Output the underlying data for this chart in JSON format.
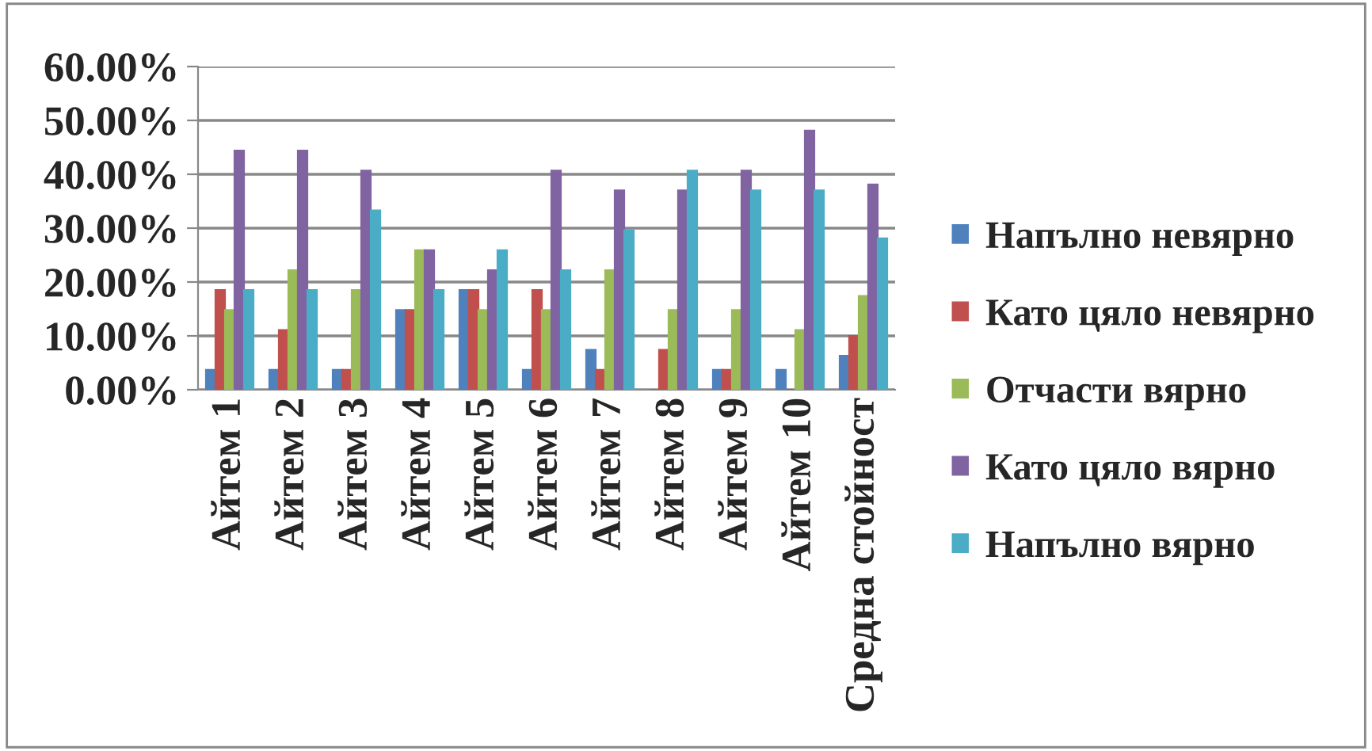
{
  "chart_data": {
    "type": "bar",
    "categories": [
      "Айтем 1",
      "Айтем 2",
      "Айтем 3",
      "Айтем 4",
      "Айтем 5",
      "Айтем 6",
      "Айтем 7",
      "Айтем 8",
      "Айтем 9",
      "Айтем 10",
      "Средна стойност"
    ],
    "series": [
      {
        "name": "Напълно невярно",
        "color": "#4f81bd",
        "values": [
          3.7,
          3.7,
          3.7,
          14.8,
          18.5,
          3.7,
          7.4,
          0,
          3.7,
          3.7,
          6.3
        ]
      },
      {
        "name": "Като цяло невярно",
        "color": "#c0504d",
        "values": [
          18.5,
          11.1,
          3.7,
          14.8,
          18.5,
          18.5,
          3.7,
          7.4,
          3.7,
          0,
          10.0
        ]
      },
      {
        "name": "Отчасти вярно",
        "color": "#9bbb59",
        "values": [
          14.8,
          22.2,
          18.5,
          25.9,
          14.8,
          14.8,
          22.2,
          14.8,
          14.8,
          11.1,
          17.4
        ]
      },
      {
        "name": "Като цяло вярно",
        "color": "#8064a2",
        "values": [
          44.4,
          44.4,
          40.7,
          25.9,
          22.2,
          40.7,
          37.0,
          37.0,
          40.7,
          48.1,
          38.1
        ]
      },
      {
        "name": "Напълно вярно",
        "color": "#4bacc6",
        "values": [
          18.5,
          18.5,
          33.3,
          18.5,
          25.9,
          22.2,
          29.6,
          40.7,
          37.0,
          37.0,
          28.1
        ]
      }
    ],
    "ylim": [
      0,
      60
    ],
    "yticks": [
      {
        "value": 0,
        "label": "0.00%"
      },
      {
        "value": 10,
        "label": "10.00%"
      },
      {
        "value": 20,
        "label": "20.00%"
      },
      {
        "value": 30,
        "label": "30.00%"
      },
      {
        "value": 40,
        "label": "40.00%"
      },
      {
        "value": 50,
        "label": "50.00%"
      },
      {
        "value": 60,
        "label": "60.00%"
      }
    ],
    "grid": "y",
    "legend": "right"
  }
}
